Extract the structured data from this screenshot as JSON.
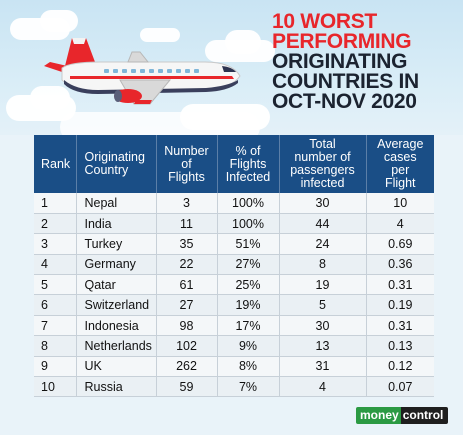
{
  "headline": {
    "line1": "10 WORST",
    "line2": "PERFORMING",
    "line3": "ORIGINATING",
    "line4": "COUNTRIES IN",
    "line5": "OCT-NOV 2020"
  },
  "table": {
    "headers": {
      "rank": "Rank",
      "country": [
        "Originating",
        "Country"
      ],
      "flights": [
        "Number",
        "of",
        "Flights"
      ],
      "pct": [
        "% of",
        "Flights",
        "Infected"
      ],
      "passengers": [
        "Total",
        "number of",
        "passengers",
        "infected"
      ],
      "avg": [
        "Average",
        "cases",
        "per",
        "Flight"
      ]
    },
    "rows": [
      {
        "rank": "1",
        "country": "Nepal",
        "flights": "3",
        "pct": "100%",
        "passengers": "30",
        "avg": "10"
      },
      {
        "rank": "2",
        "country": "India",
        "flights": "11",
        "pct": "100%",
        "passengers": "44",
        "avg": "4"
      },
      {
        "rank": "3",
        "country": "Turkey",
        "flights": "35",
        "pct": "51%",
        "passengers": "24",
        "avg": "0.69"
      },
      {
        "rank": "4",
        "country": "Germany",
        "flights": "22",
        "pct": "27%",
        "passengers": "8",
        "avg": "0.36"
      },
      {
        "rank": "5",
        "country": "Qatar",
        "flights": "61",
        "pct": "25%",
        "passengers": "19",
        "avg": "0.31"
      },
      {
        "rank": "6",
        "country": "Switzerland",
        "flights": "27",
        "pct": "19%",
        "passengers": "5",
        "avg": "0.19"
      },
      {
        "rank": "7",
        "country": "Indonesia",
        "flights": "98",
        "pct": "17%",
        "passengers": "30",
        "avg": "0.31"
      },
      {
        "rank": "8",
        "country": "Netherlands",
        "flights": "102",
        "pct": "9%",
        "passengers": "13",
        "avg": "0.13"
      },
      {
        "rank": "9",
        "country": "UK",
        "flights": "262",
        "pct": "8%",
        "passengers": "31",
        "avg": "0.12"
      },
      {
        "rank": "10",
        "country": "Russia",
        "flights": "59",
        "pct": "7%",
        "passengers": "4",
        "avg": "0.07"
      }
    ]
  },
  "logo": {
    "part1": "money",
    "part2": "control"
  },
  "colors": {
    "header_bg": "#1a4e86",
    "headline_red": "#e8262b",
    "headline_dark": "#1b2330",
    "sky": "#c9e4f3",
    "logo_green": "#2b9a43"
  },
  "illustration": "airplane-icon"
}
